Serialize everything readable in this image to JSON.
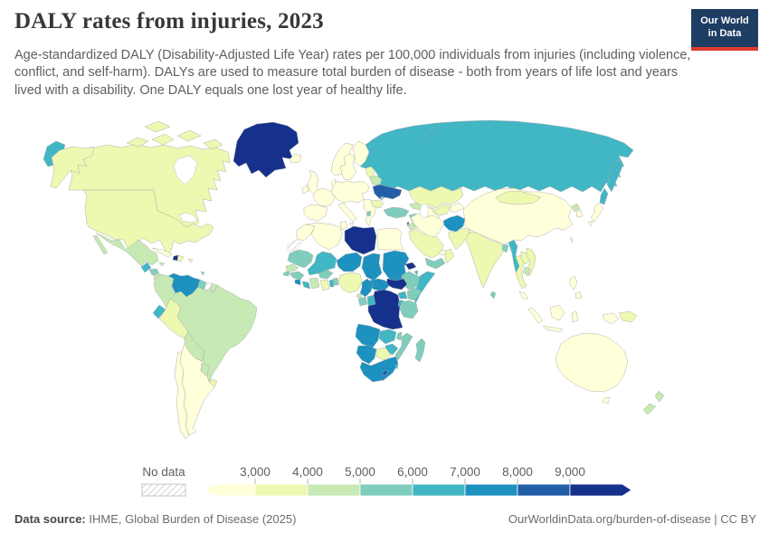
{
  "header": {
    "title": "DALY rates from injuries, 2023",
    "subtitle": "Age-standardized DALY (Disability-Adjusted Life Year) rates per 100,000 individuals from injuries (including violence, conflict, and self-harm). DALYs are used to measure total burden of disease - both from years of life lost and years lived with a disability. One DALY equals one lost year of healthy life.",
    "logo": {
      "line1": "Our World",
      "line2": "in Data",
      "bg": "#1d3d63",
      "accent": "#e23b2e"
    }
  },
  "legend": {
    "no_data_label": "No data",
    "tick_labels": [
      "3,000",
      "4,000",
      "5,000",
      "6,000",
      "7,000",
      "8,000",
      "9,000"
    ],
    "colors": [
      "#ffffd9",
      "#edf8b1",
      "#c7e9b4",
      "#7fcdbb",
      "#41b6c4",
      "#1d91c0",
      "#225ea8",
      "#15318c"
    ]
  },
  "footer": {
    "source_label": "Data source:",
    "source_text": " IHME, Global Burden of Disease (2025)",
    "right_text": "OurWorldinData.org/burden-of-disease | CC BY"
  },
  "chart_data": {
    "type": "heatmap",
    "title": "DALY rates from injuries, 2023",
    "unit": "DALYs from injuries per 100,000 individuals (age-standardized)",
    "legend_position": "bottom",
    "bins": [
      {
        "label": "< 3,000",
        "color": "#ffffd9"
      },
      {
        "label": "3,000-4,000",
        "color": "#edf8b1"
      },
      {
        "label": "4,000-5,000",
        "color": "#c7e9b4"
      },
      {
        "label": "5,000-6,000",
        "color": "#7fcdbb"
      },
      {
        "label": "6,000-7,000",
        "color": "#41b6c4"
      },
      {
        "label": "7,000-8,000",
        "color": "#1d91c0"
      },
      {
        "label": "8,000-9,000",
        "color": "#225ea8"
      },
      {
        "label": "> 9,000",
        "color": "#15318c"
      },
      {
        "label": "No data",
        "color": "hatch"
      }
    ],
    "regions": {
      "canada": 1,
      "usa": 1,
      "alaska": 1,
      "arctic1": 1,
      "arctic2": 1,
      "arctic3": 1,
      "arctic4": 1,
      "arctic5": 1,
      "greenland": 7,
      "iceland": 0,
      "mexico": 2,
      "guatemala": 4,
      "honduras": 3,
      "nicaragua": 2,
      "costarica": 2,
      "panama": 3,
      "cuba": 0,
      "jamaica": 2,
      "haiti": 7,
      "domrep": 1,
      "puertorico": 1,
      "trinidad": 3,
      "colombia": 2,
      "venezuela": 5,
      "guyana": 3,
      "suriname": "no_data",
      "frguiana": 2,
      "ecuador": 4,
      "peru": 1,
      "brazil": 2,
      "bolivia": 2,
      "paraguay": 2,
      "uruguay": 1,
      "argentina": 0,
      "chile": 0,
      "uk": 0,
      "ireland": 0,
      "norway": 0,
      "sweden": 0,
      "finland": 0,
      "denmark": 0,
      "spain": 0,
      "france": 0,
      "centraleurope": 0,
      "italy": 0,
      "balkans": 0,
      "albania": 3,
      "baltics": 1,
      "belarus": 2,
      "ukraine": 6,
      "moldova": 3,
      "romania": 1,
      "turkey": 3,
      "russia": 4,
      "kamchatka": 4,
      "chukotka": 4,
      "sakhalin": 4,
      "novayazemlya": 4,
      "kazakhstan": 1,
      "uzbekistan": 1,
      "turkmenistan": 0,
      "kyrgyzstan": 0,
      "caucasus": 2,
      "syria": 3,
      "iraq": 2,
      "jordan": 2,
      "israel": 7,
      "saudi": 1,
      "yemen": 3,
      "oman": 1,
      "uae": 0,
      "iran": 0,
      "afghanistan": 5,
      "pakistan": 1,
      "india": 1,
      "bangladesh": 3,
      "srilanka": 3,
      "myanmar": 4,
      "thailand": 1,
      "laos": 1,
      "vietnam": 1,
      "cambodia": 2,
      "malaysia": 0,
      "china": 0,
      "mongolia": 1,
      "northkorea": 2,
      "southkorea": 0,
      "japan": 0,
      "taiwan": 0,
      "philippines": 0,
      "indonesia": 0,
      "png": 1,
      "australia": 0,
      "tasmania": 0,
      "nz": 2,
      "morocco": 0,
      "wsahara": "no_data",
      "algeria": 0,
      "tunisia": 0,
      "libya": 7,
      "egypt": 0,
      "mauritania": 3,
      "senegal": 2,
      "guineabissau": 3,
      "guinea": 3,
      "sierraleone": 5,
      "liberia": 4,
      "ivorycoast": 2,
      "ghana": 1,
      "togo": 4,
      "benin": 3,
      "burkina": 3,
      "mali": 4,
      "niger": 5,
      "nigeria": 1,
      "chad": 5,
      "sudan": 5,
      "eritrea": 7,
      "djibouti": 4,
      "ethiopia": 3,
      "somalia": 4,
      "southsudan": 7,
      "car": 5,
      "cameroon": 5,
      "eqguinea": 2,
      "gabon": 3,
      "congo": 4,
      "drc": 7,
      "uganda": 4,
      "kenya": 3,
      "rwandaburundi": 4,
      "tanzania": 3,
      "angola": 5,
      "zambia": 4,
      "malawi": 3,
      "mozambique": 3,
      "zimbabwe": 4,
      "botswana": 1,
      "namibia": 5,
      "southafrica": 5,
      "lesotho": 6,
      "eswatini": 4,
      "madagascar": 3
    }
  }
}
